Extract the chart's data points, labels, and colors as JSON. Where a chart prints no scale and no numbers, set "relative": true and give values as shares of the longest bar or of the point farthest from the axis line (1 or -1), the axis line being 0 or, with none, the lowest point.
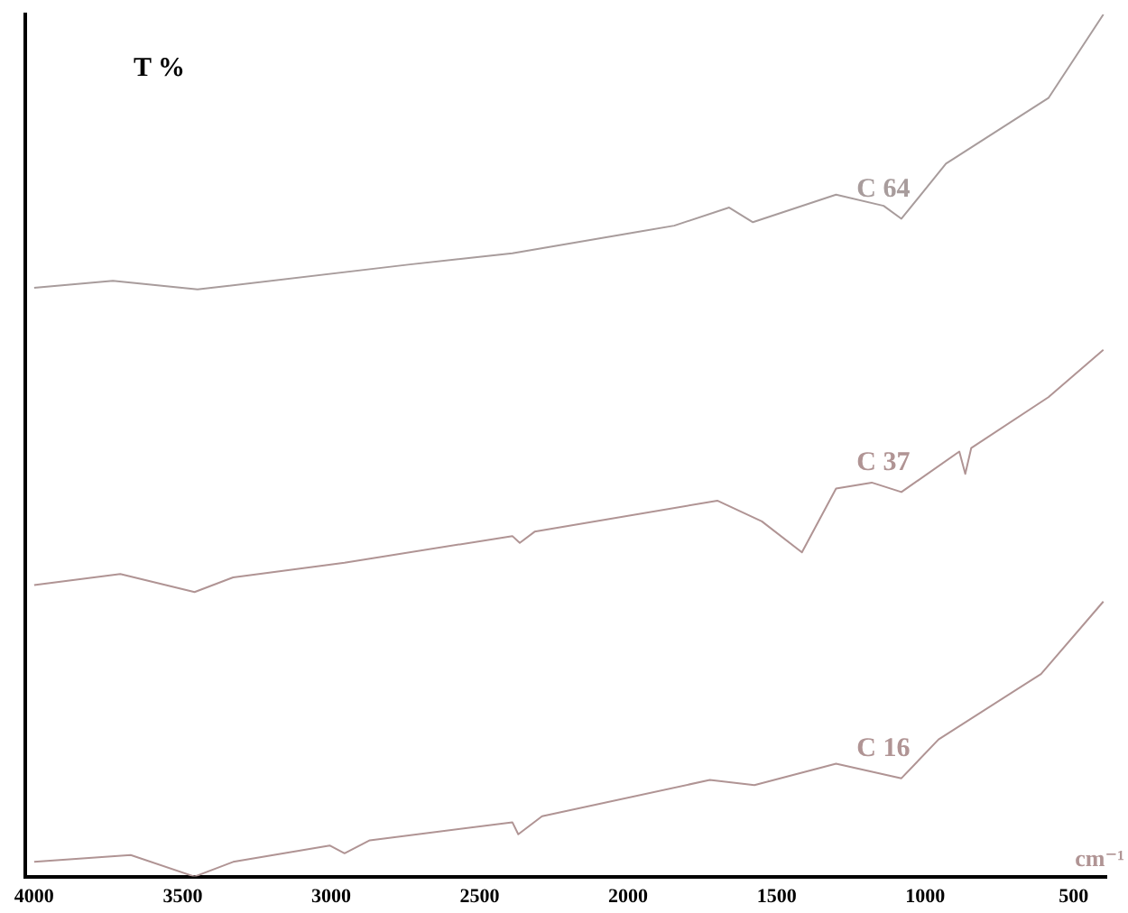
{
  "chart_data": {
    "type": "line",
    "ylabel": "T %",
    "xlabel": "cm⁻¹",
    "relative": true,
    "xlim": [
      4030,
      390
    ],
    "xticks": [
      4000,
      3500,
      3000,
      2500,
      2000,
      1500,
      1000,
      500
    ],
    "grid": false,
    "legend": false,
    "marker": "none",
    "line_style": "solid",
    "series": [
      {
        "name": "C 64",
        "color": "#a89c9c",
        "x": [
          4000,
          3735,
          3450,
          2735,
          2390,
          1845,
          1660,
          1580,
          1300,
          1140,
          1080,
          930,
          585,
          400
        ],
        "values": [
          0.683,
          0.691,
          0.681,
          0.71,
          0.723,
          0.755,
          0.776,
          0.759,
          0.791,
          0.778,
          0.763,
          0.827,
          0.903,
          1
        ]
      },
      {
        "name": "C 37",
        "color": "#b09494",
        "x": [
          4000,
          3710,
          3460,
          3330,
          2955,
          2390,
          2365,
          2315,
          1700,
          1550,
          1415,
          1300,
          1180,
          1080,
          885,
          865,
          845,
          585,
          400
        ],
        "values": [
          0.338,
          0.351,
          0.33,
          0.347,
          0.364,
          0.395,
          0.387,
          0.4,
          0.436,
          0.412,
          0.376,
          0.45,
          0.457,
          0.446,
          0.493,
          0.467,
          0.497,
          0.556,
          0.611
        ]
      },
      {
        "name": "C 16",
        "color": "#b09494",
        "x": [
          4000,
          3675,
          3460,
          3330,
          3005,
          2955,
          2870,
          2390,
          2370,
          2290,
          1725,
          1575,
          1300,
          1080,
          955,
          610,
          400
        ],
        "values": [
          0.017,
          0.025,
          0,
          0.017,
          0.036,
          0.027,
          0.042,
          0.063,
          0.049,
          0.07,
          0.112,
          0.106,
          0.131,
          0.114,
          0.159,
          0.235,
          0.319
        ]
      }
    ]
  }
}
